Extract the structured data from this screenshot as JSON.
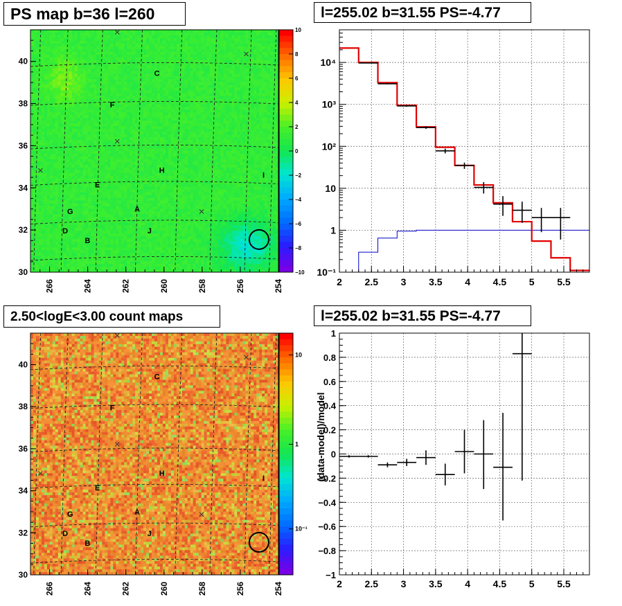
{
  "panels": {
    "ps_map_title": "PS map b=36 l=260",
    "spectrum_title": "l=255.02 b=31.55 PS=-4.77",
    "count_map_title": "2.50<logE<3.00 count maps",
    "residual_title": "l=255.02 b=31.55 PS=-4.77"
  },
  "chart_data": [
    {
      "id": "ps_map",
      "type": "heatmap",
      "title": "PS map b=36 l=260",
      "x_ticks": [
        "266",
        "264",
        "262",
        "260",
        "258",
        "256",
        "254"
      ],
      "y_ticks": [
        "30",
        "32",
        "34",
        "36",
        "38",
        "40"
      ],
      "xlim": [
        254,
        267
      ],
      "ylim": [
        30,
        41.5
      ],
      "colorbar_ticks": [
        "10",
        "8",
        "6",
        "4",
        "2",
        "0",
        "−2",
        "−4",
        "−6",
        "−8",
        "−10"
      ],
      "colorbar_range": [
        -10,
        10
      ],
      "source_labels": [
        "C",
        "F",
        "H",
        "I",
        "E",
        "G",
        "A",
        "D",
        "J",
        "B"
      ],
      "circle_marker": {
        "l": 255.02,
        "b": 31.55
      },
      "dominant_value": 0
    },
    {
      "id": "spectrum",
      "type": "line",
      "title": "l=255.02 b=31.55 PS=-4.77",
      "x_ticks": [
        "2",
        "2.5",
        "3",
        "3.5",
        "4",
        "4.5",
        "5",
        "5.5"
      ],
      "y_ticks": [
        "10⁻¹",
        "1",
        "10",
        "10²",
        "10³",
        "10⁴"
      ],
      "y_scale": "log",
      "xlim": [
        2,
        5.9
      ],
      "ylim": [
        0.1,
        60000
      ],
      "grid": true,
      "model_steps": {
        "edges": [
          2.0,
          2.3,
          2.6,
          2.9,
          3.2,
          3.5,
          3.8,
          4.1,
          4.4,
          4.7,
          5.0,
          5.3,
          5.6,
          5.9
        ],
        "values": [
          22000,
          10000,
          3300,
          950,
          290,
          95,
          35,
          12,
          4.5,
          1.6,
          0.55,
          0.22,
          0.11
        ]
      },
      "data_points": [
        {
          "x": 2.45,
          "y": 9700,
          "xerr": 0.15,
          "ylo": 9500,
          "yhi": 9900
        },
        {
          "x": 2.75,
          "y": 3100,
          "xerr": 0.15,
          "ylo": 3000,
          "yhi": 3200
        },
        {
          "x": 3.05,
          "y": 920,
          "xerr": 0.15,
          "ylo": 880,
          "yhi": 960
        },
        {
          "x": 3.35,
          "y": 280,
          "xerr": 0.15,
          "ylo": 260,
          "yhi": 300
        },
        {
          "x": 3.65,
          "y": 78,
          "xerr": 0.15,
          "ylo": 68,
          "yhi": 88
        },
        {
          "x": 3.95,
          "y": 35,
          "xerr": 0.15,
          "ylo": 29,
          "yhi": 41
        },
        {
          "x": 4.25,
          "y": 10.5,
          "xerr": 0.15,
          "ylo": 7.5,
          "yhi": 14
        },
        {
          "x": 4.55,
          "y": 4.2,
          "xerr": 0.15,
          "ylo": 2.2,
          "yhi": 6.5
        },
        {
          "x": 4.85,
          "y": 3.0,
          "xerr": 0.15,
          "ylo": 1.5,
          "yhi": 4.8
        },
        {
          "x": 5.15,
          "y": 2.0,
          "xerr": 0.15,
          "ylo": 0.9,
          "yhi": 3.4
        },
        {
          "x": 5.45,
          "y": 2.0,
          "xerr": 0.15,
          "ylo": 0.6,
          "yhi": 3.4
        }
      ],
      "blue_steps": {
        "edges": [
          2.0,
          2.3,
          2.6,
          2.9,
          3.2,
          5.9
        ],
        "values": [
          0.05,
          0.3,
          0.65,
          0.95,
          1.0
        ]
      }
    },
    {
      "id": "count_map",
      "type": "heatmap",
      "title": "2.50<logE<3.00 count maps",
      "x_ticks": [
        "266",
        "264",
        "262",
        "260",
        "258",
        "256",
        "254"
      ],
      "y_ticks": [
        "30",
        "32",
        "34",
        "36",
        "38",
        "40"
      ],
      "colorbar_ticks": [
        "10",
        "1",
        "10⁻¹"
      ],
      "colorbar_scale": "log",
      "source_labels": [
        "C",
        "F",
        "H",
        "I",
        "E",
        "G",
        "A",
        "D",
        "J",
        "B"
      ],
      "circle_marker": {
        "l": 255.02,
        "b": 31.55
      }
    },
    {
      "id": "residual",
      "type": "scatter",
      "title": "l=255.02 b=31.55 PS=-4.77",
      "ylabel": "(data-model)/model",
      "x_ticks": [
        "2",
        "2.5",
        "3",
        "3.5",
        "4",
        "4.5",
        "5",
        "5.5"
      ],
      "y_ticks": [
        "−1",
        "−0.8",
        "−0.6",
        "−0.4",
        "−0.2",
        "0",
        "0.2",
        "0.4",
        "0.6",
        "0.8",
        "1"
      ],
      "xlim": [
        2,
        5.9
      ],
      "ylim": [
        -1,
        1
      ],
      "grid": true,
      "points": [
        {
          "x": 2.15,
          "y": -0.02,
          "xerr": 0.15,
          "ylo": -0.03,
          "yhi": -0.01
        },
        {
          "x": 2.45,
          "y": -0.02,
          "xerr": 0.15,
          "ylo": -0.03,
          "yhi": -0.01
        },
        {
          "x": 2.75,
          "y": -0.09,
          "xerr": 0.15,
          "ylo": -0.11,
          "yhi": -0.07
        },
        {
          "x": 3.05,
          "y": -0.07,
          "xerr": 0.15,
          "ylo": -0.1,
          "yhi": -0.04
        },
        {
          "x": 3.35,
          "y": -0.03,
          "xerr": 0.15,
          "ylo": -0.09,
          "yhi": 0.03
        },
        {
          "x": 3.65,
          "y": -0.17,
          "xerr": 0.15,
          "ylo": -0.26,
          "yhi": -0.08
        },
        {
          "x": 3.95,
          "y": 0.02,
          "xerr": 0.15,
          "ylo": -0.16,
          "yhi": 0.2
        },
        {
          "x": 4.25,
          "y": 0.0,
          "xerr": 0.15,
          "ylo": -0.29,
          "yhi": 0.28
        },
        {
          "x": 4.55,
          "y": -0.11,
          "xerr": 0.15,
          "ylo": -0.55,
          "yhi": 0.34
        },
        {
          "x": 4.85,
          "y": 0.83,
          "xerr": 0.15,
          "ylo": -0.22,
          "yhi": 1.0
        }
      ]
    }
  ]
}
